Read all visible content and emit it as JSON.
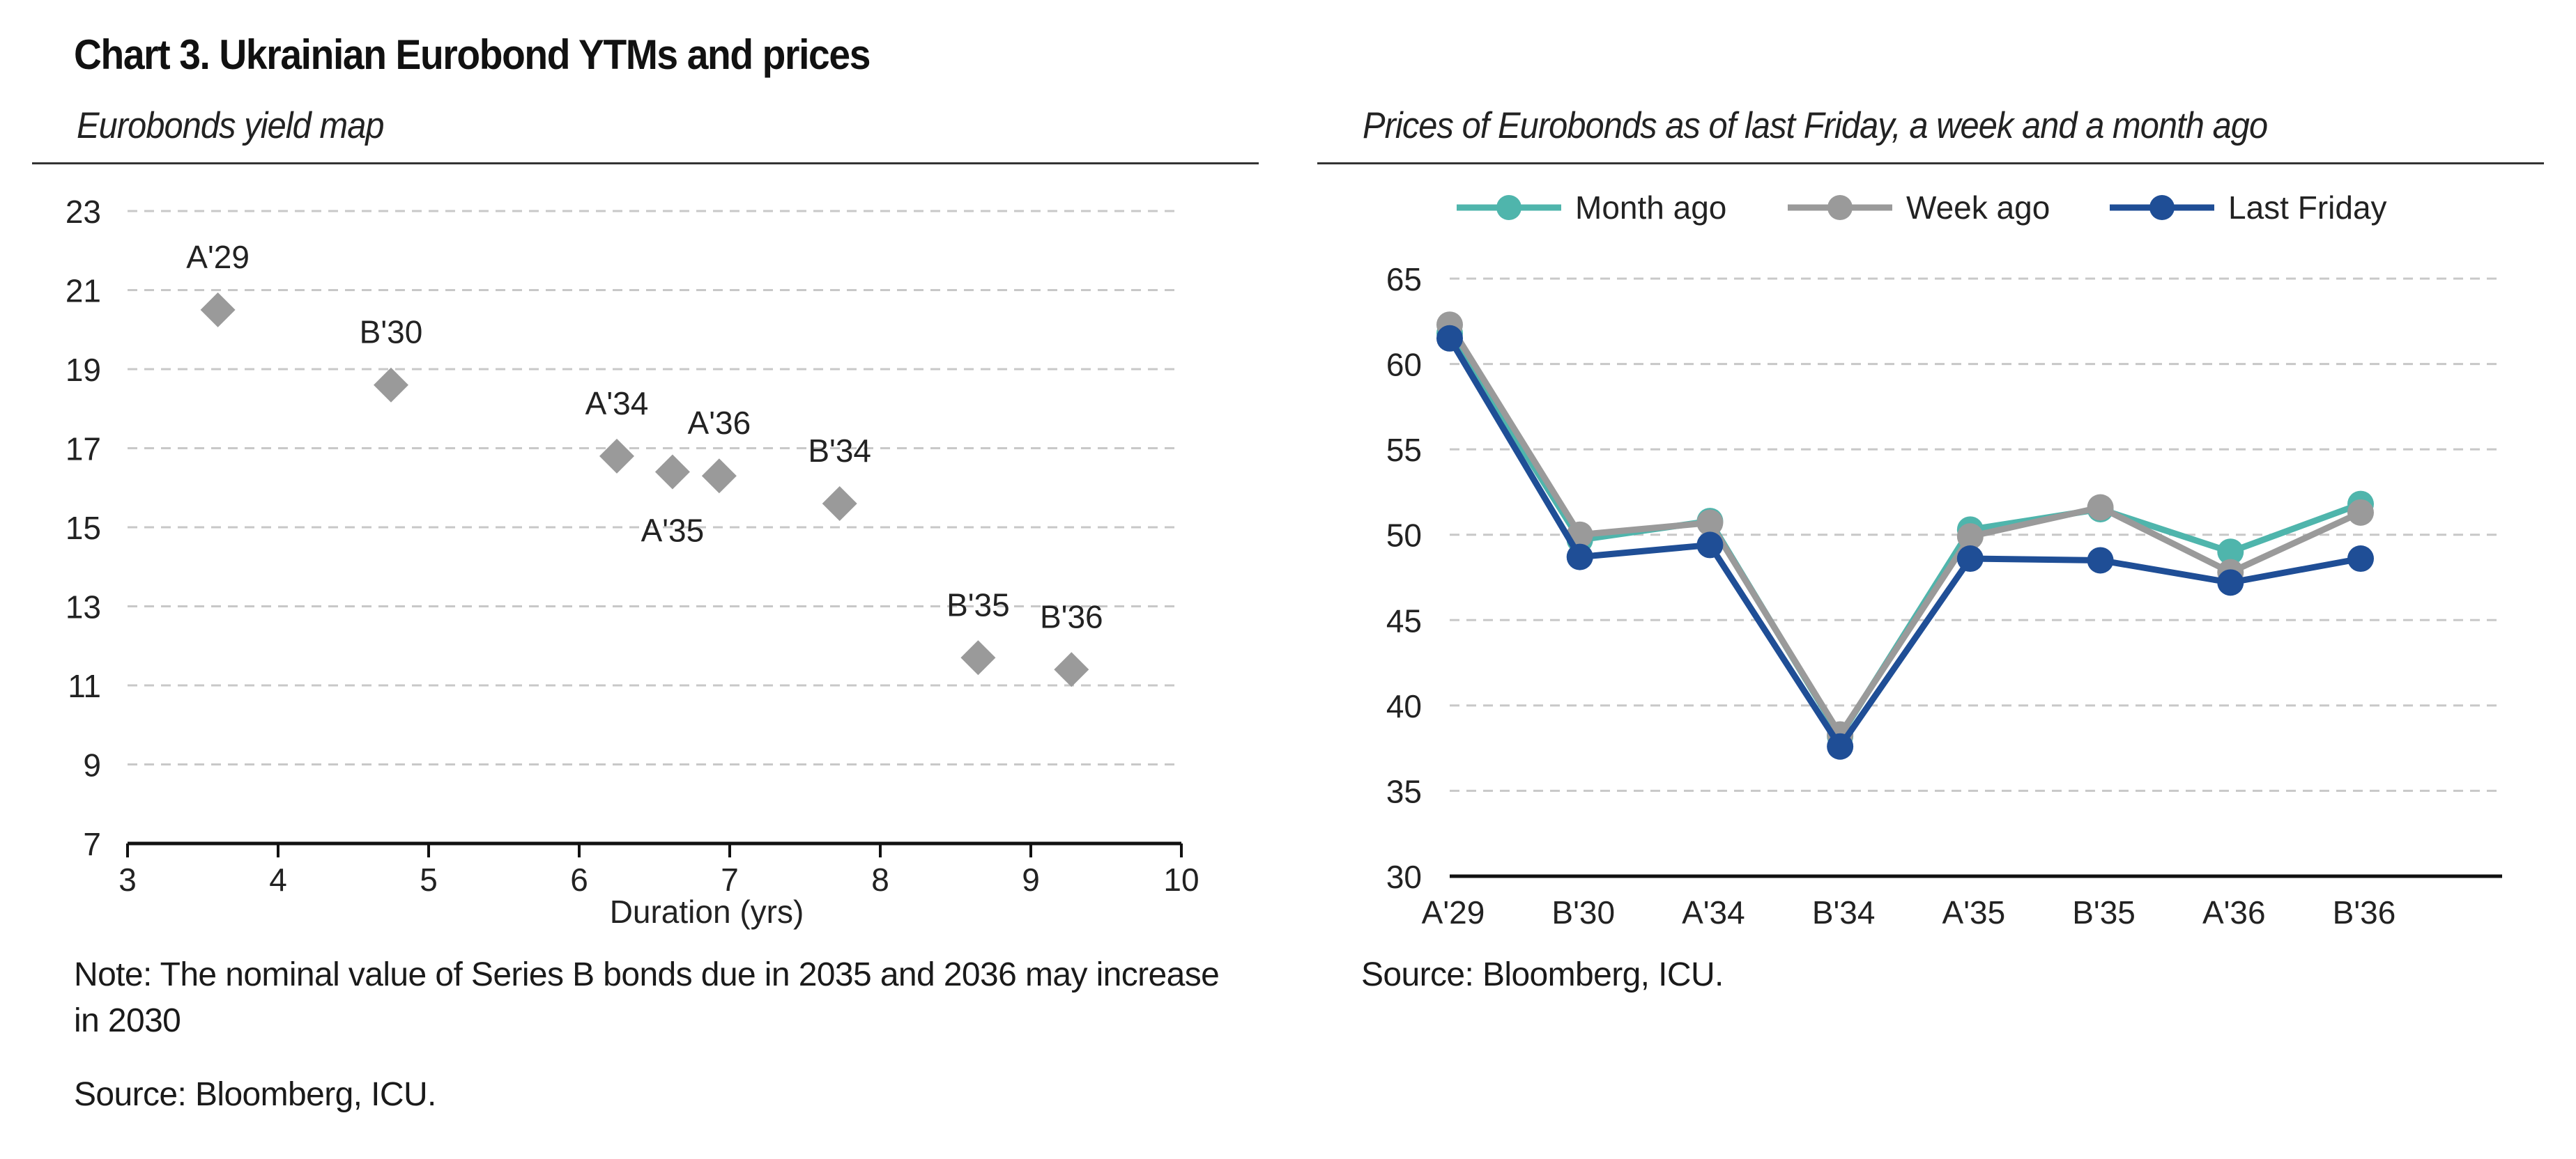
{
  "title": "Chart 3. Ukrainian Eurobond YTMs and prices",
  "left": {
    "subtitle": "Eurobonds yield map",
    "note": "Note: The nominal value of Series B bonds due in 2035 and 2036 may increase in 2030",
    "source": "Source: Bloomberg, ICU."
  },
  "right": {
    "subtitle": "Prices of Eurobonds as of last Friday, a week and a month ago",
    "source": "Source: Bloomberg, ICU."
  },
  "colors": {
    "scatter": "#9a9a9a",
    "month_ago": "#4fb5ac",
    "week_ago": "#9a9a9a",
    "last_friday": "#1f4e96",
    "grid": "#c8c8c8",
    "axis": "#111111"
  },
  "chart_data": [
    {
      "type": "scatter",
      "title": "Eurobonds yield map",
      "xlabel": "Duration (yrs)",
      "ylabel": "",
      "xlim": [
        3,
        10
      ],
      "ylim": [
        7,
        23
      ],
      "xticks": [
        3,
        4,
        5,
        6,
        7,
        8,
        9,
        10
      ],
      "yticks": [
        7,
        9,
        11,
        13,
        15,
        17,
        19,
        21,
        23
      ],
      "grid": true,
      "marker": "diamond",
      "points": [
        {
          "label": "A'29",
          "x": 3.6,
          "y": 20.5,
          "label_pos": "above"
        },
        {
          "label": "B'30",
          "x": 4.75,
          "y": 18.6,
          "label_pos": "above"
        },
        {
          "label": "A'34",
          "x": 6.25,
          "y": 16.8,
          "label_pos": "above"
        },
        {
          "label": "A'35",
          "x": 6.62,
          "y": 16.4,
          "label_pos": "below"
        },
        {
          "label": "A'36",
          "x": 6.93,
          "y": 16.3,
          "label_pos": "above"
        },
        {
          "label": "B'34",
          "x": 7.73,
          "y": 15.6,
          "label_pos": "above"
        },
        {
          "label": "B'35",
          "x": 8.65,
          "y": 11.7,
          "label_pos": "above"
        },
        {
          "label": "B'36",
          "x": 9.27,
          "y": 11.4,
          "label_pos": "above"
        }
      ]
    },
    {
      "type": "line",
      "title": "Prices of Eurobonds as of last Friday, a week and a month ago",
      "categories": [
        "A'29",
        "B'30",
        "A'34",
        "B'34",
        "A'35",
        "B'35",
        "A'36",
        "B'36"
      ],
      "ylim": [
        30,
        65
      ],
      "yticks": [
        30,
        35,
        40,
        45,
        50,
        55,
        60,
        65
      ],
      "grid": true,
      "legend_position": "top",
      "series": [
        {
          "name": "Month ago",
          "values": [
            61.8,
            49.7,
            50.8,
            38.2,
            50.3,
            51.5,
            49.0,
            51.8
          ]
        },
        {
          "name": "Week ago",
          "values": [
            62.3,
            50.0,
            50.7,
            38.3,
            49.9,
            51.6,
            47.8,
            51.3
          ]
        },
        {
          "name": "Last Friday",
          "values": [
            61.5,
            48.7,
            49.4,
            37.6,
            48.6,
            48.5,
            47.2,
            48.6
          ]
        }
      ]
    }
  ]
}
